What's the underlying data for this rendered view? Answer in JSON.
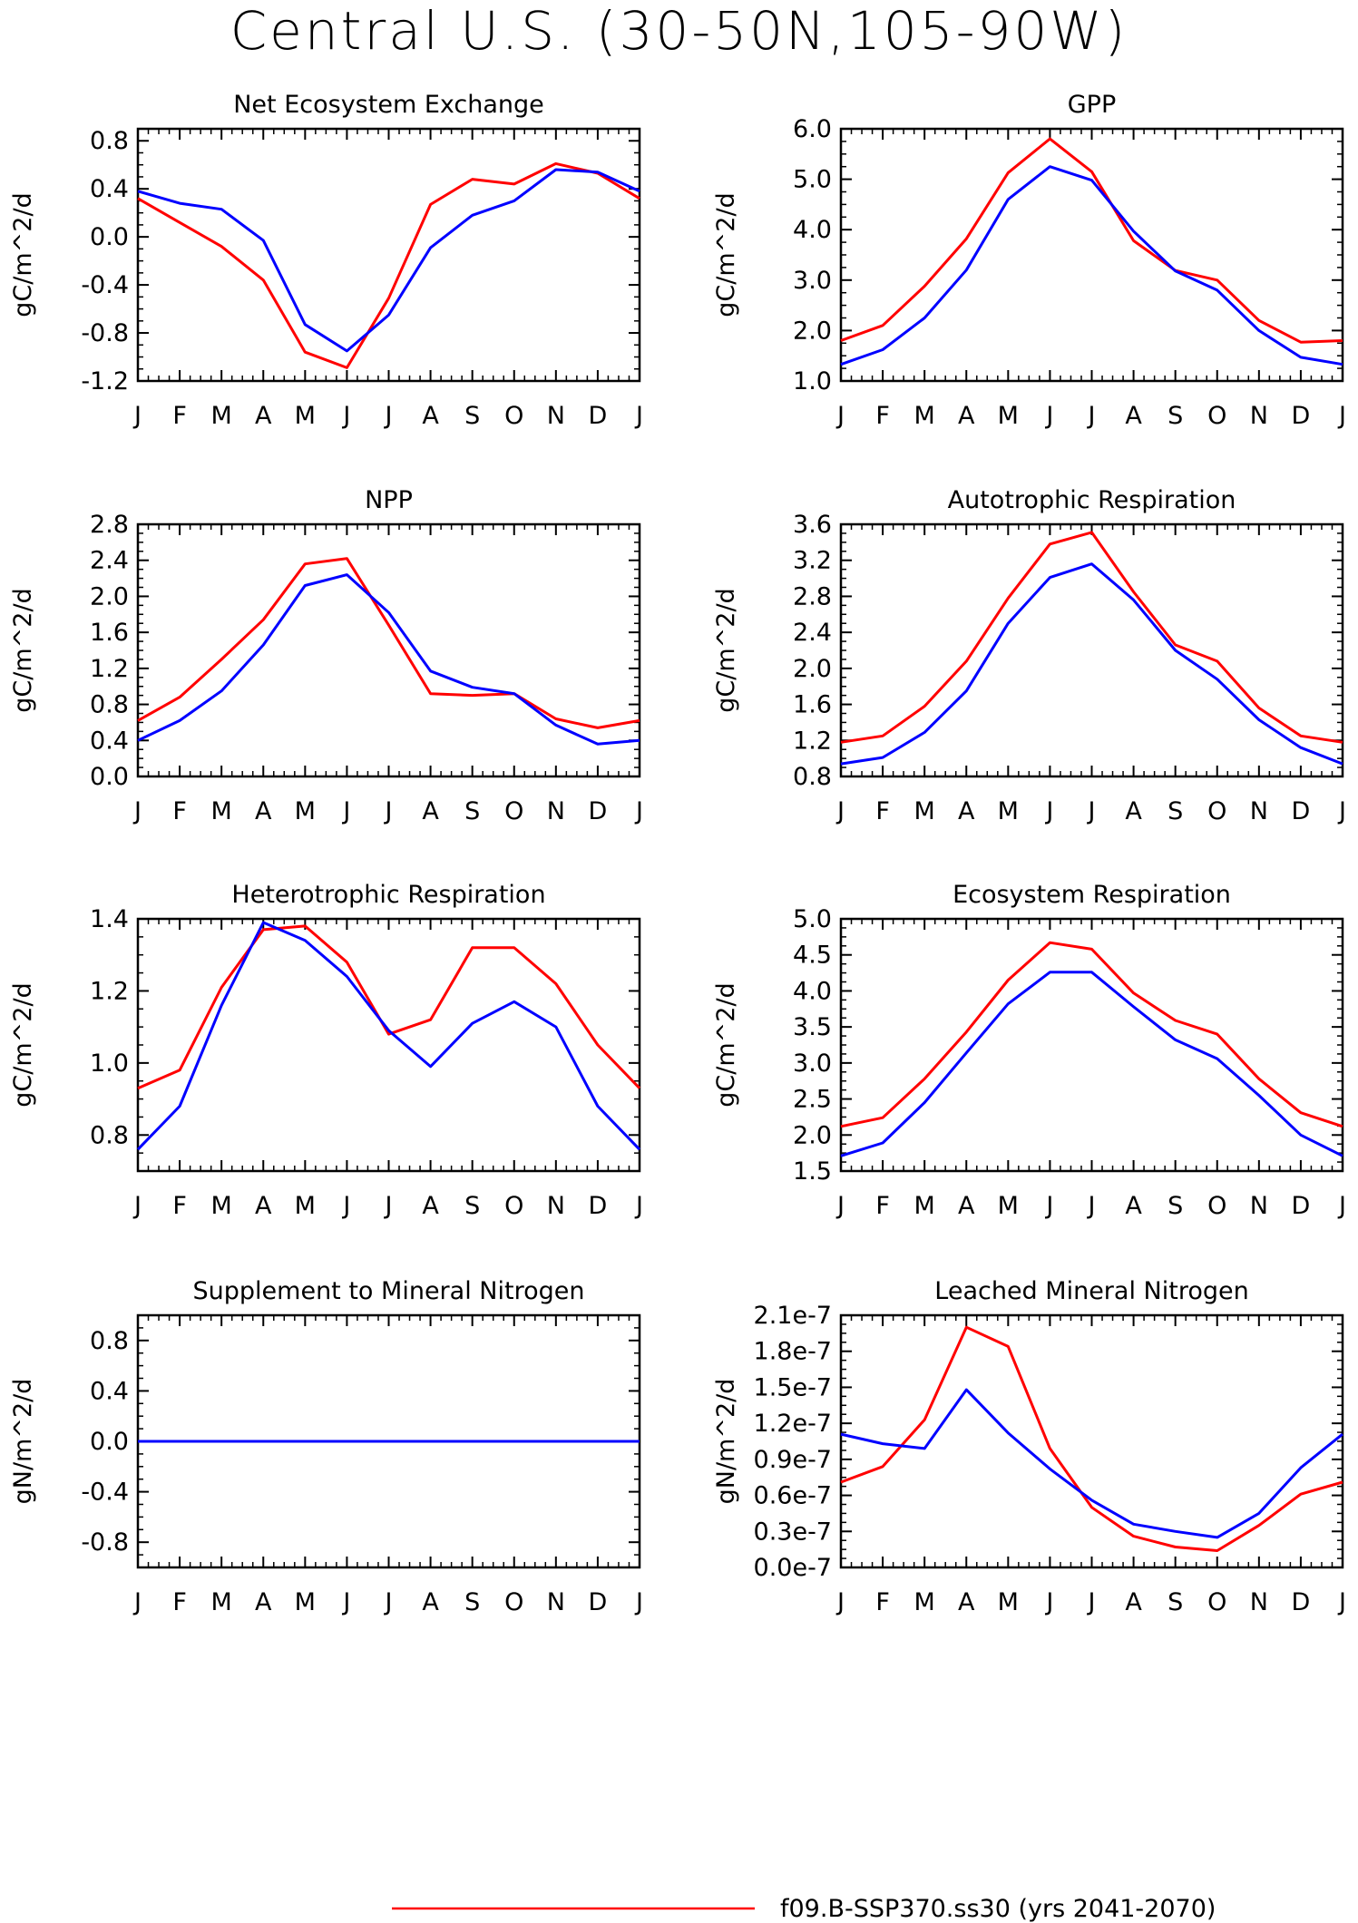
{
  "page_title": "Central U.S. (30-50N,105-90W)",
  "months": [
    "J",
    "F",
    "M",
    "A",
    "M",
    "J",
    "J",
    "A",
    "S",
    "O",
    "N",
    "D",
    "J"
  ],
  "colors": {
    "series1": "#ff0000",
    "series2": "#0000ff",
    "axis": "#000000"
  },
  "chart_data": [
    {
      "type": "line",
      "title": "Net Ecosystem Exchange",
      "ylabel": "gC/m^2/d",
      "ylim": [
        -1.2,
        0.9
      ],
      "yticks": [
        -1.2,
        -0.8,
        -0.4,
        0.0,
        0.4,
        0.8
      ],
      "ytick_labels": [
        "-1.2",
        "-0.8",
        "-0.4",
        "0.0",
        "0.4",
        "0.8"
      ],
      "series": [
        {
          "color": "#ff0000",
          "values": [
            0.32,
            0.12,
            -0.08,
            -0.36,
            -0.96,
            -1.09,
            -0.51,
            0.27,
            0.48,
            0.44,
            0.61,
            0.53,
            0.32
          ]
        },
        {
          "color": "#0000ff",
          "values": [
            0.38,
            0.28,
            0.23,
            -0.03,
            -0.73,
            -0.95,
            -0.65,
            -0.09,
            0.18,
            0.3,
            0.56,
            0.54,
            0.38
          ]
        }
      ]
    },
    {
      "type": "line",
      "title": "GPP",
      "ylabel": "gC/m^2/d",
      "ylim": [
        1.0,
        6.0
      ],
      "yticks": [
        1.0,
        2.0,
        3.0,
        4.0,
        5.0,
        6.0
      ],
      "ytick_labels": [
        "1.0",
        "2.0",
        "3.0",
        "4.0",
        "5.0",
        "6.0"
      ],
      "series": [
        {
          "color": "#ff0000",
          "values": [
            1.8,
            2.1,
            2.88,
            3.82,
            5.13,
            5.8,
            5.15,
            3.78,
            3.19,
            3.0,
            2.2,
            1.77,
            1.8
          ]
        },
        {
          "color": "#0000ff",
          "values": [
            1.33,
            1.62,
            2.25,
            3.2,
            4.6,
            5.25,
            4.98,
            3.97,
            3.18,
            2.8,
            2.0,
            1.47,
            1.33
          ]
        }
      ]
    },
    {
      "type": "line",
      "title": "NPP",
      "ylabel": "gC/m^2/d",
      "ylim": [
        0.0,
        2.8
      ],
      "yticks": [
        0.0,
        0.4,
        0.8,
        1.2,
        1.6,
        2.0,
        2.4,
        2.8
      ],
      "ytick_labels": [
        "0.0",
        "0.4",
        "0.8",
        "1.2",
        "1.6",
        "2.0",
        "2.4",
        "2.8"
      ],
      "series": [
        {
          "color": "#ff0000",
          "values": [
            0.62,
            0.88,
            1.3,
            1.74,
            2.36,
            2.42,
            1.68,
            0.92,
            0.9,
            0.92,
            0.64,
            0.54,
            0.62
          ]
        },
        {
          "color": "#0000ff",
          "values": [
            0.4,
            0.62,
            0.95,
            1.46,
            2.12,
            2.24,
            1.82,
            1.17,
            0.99,
            0.92,
            0.57,
            0.36,
            0.4
          ]
        }
      ]
    },
    {
      "type": "line",
      "title": "Autotrophic Respiration",
      "ylabel": "gC/m^2/d",
      "ylim": [
        0.8,
        3.6
      ],
      "yticks": [
        0.8,
        1.2,
        1.6,
        2.0,
        2.4,
        2.8,
        3.2,
        3.6
      ],
      "ytick_labels": [
        "0.8",
        "1.2",
        "1.6",
        "2.0",
        "2.4",
        "2.8",
        "3.2",
        "3.6"
      ],
      "series": [
        {
          "color": "#ff0000",
          "values": [
            1.18,
            1.25,
            1.58,
            2.08,
            2.78,
            3.38,
            3.51,
            2.85,
            2.26,
            2.08,
            1.56,
            1.25,
            1.18
          ]
        },
        {
          "color": "#0000ff",
          "values": [
            0.94,
            1.01,
            1.29,
            1.75,
            2.5,
            3.01,
            3.16,
            2.76,
            2.2,
            1.88,
            1.43,
            1.12,
            0.94
          ]
        }
      ]
    },
    {
      "type": "line",
      "title": "Heterotrophic Respiration",
      "ylabel": "gC/m^2/d",
      "ylim": [
        0.7,
        1.4
      ],
      "yticks": [
        0.8,
        1.0,
        1.2,
        1.4
      ],
      "ytick_labels": [
        "0.8",
        "1.0",
        "1.2",
        "1.4"
      ],
      "series": [
        {
          "color": "#ff0000",
          "values": [
            0.93,
            0.98,
            1.21,
            1.37,
            1.38,
            1.28,
            1.08,
            1.12,
            1.32,
            1.32,
            1.22,
            1.05,
            0.93
          ]
        },
        {
          "color": "#0000ff",
          "values": [
            0.76,
            0.88,
            1.16,
            1.39,
            1.34,
            1.24,
            1.09,
            0.99,
            1.11,
            1.17,
            1.1,
            0.88,
            0.76
          ]
        }
      ]
    },
    {
      "type": "line",
      "title": "Ecosystem Respiration",
      "ylabel": "gC/m^2/d",
      "ylim": [
        1.5,
        5.0
      ],
      "yticks": [
        1.5,
        2.0,
        2.5,
        3.0,
        3.5,
        4.0,
        4.5,
        5.0
      ],
      "ytick_labels": [
        "1.5",
        "2.0",
        "2.5",
        "3.0",
        "3.5",
        "4.0",
        "4.5",
        "5.0"
      ],
      "series": [
        {
          "color": "#ff0000",
          "values": [
            2.12,
            2.24,
            2.78,
            3.43,
            4.15,
            4.67,
            4.58,
            3.97,
            3.59,
            3.4,
            2.78,
            2.31,
            2.12
          ]
        },
        {
          "color": "#0000ff",
          "values": [
            1.71,
            1.89,
            2.45,
            3.14,
            3.82,
            4.26,
            4.26,
            3.78,
            3.32,
            3.06,
            2.55,
            2.0,
            1.71
          ]
        }
      ]
    },
    {
      "type": "line",
      "title": "Supplement to Mineral Nitrogen",
      "ylabel": "gN/m^2/d",
      "ylim": [
        -1.0,
        1.0
      ],
      "yticks": [
        -0.8,
        -0.4,
        0.0,
        0.4,
        0.8
      ],
      "ytick_labels": [
        "-0.8",
        "-0.4",
        "0.0",
        "0.4",
        "0.8"
      ],
      "series": [
        {
          "color": "#ff0000",
          "values": [
            0,
            0,
            0,
            0,
            0,
            0,
            0,
            0,
            0,
            0,
            0,
            0,
            0
          ]
        },
        {
          "color": "#0000ff",
          "values": [
            0,
            0,
            0,
            0,
            0,
            0,
            0,
            0,
            0,
            0,
            0,
            0,
            0
          ]
        }
      ]
    },
    {
      "type": "line",
      "title": "Leached Mineral Nitrogen",
      "ylabel": "gN/m^2/d",
      "ylim": [
        0.0,
        2.1e-07
      ],
      "yticks": [
        0.0,
        3e-08,
        6e-08,
        9e-08,
        1.2e-07,
        1.5e-07,
        1.8e-07,
        2.1e-07
      ],
      "ytick_labels": [
        "0.0e-7",
        "0.3e-7",
        "0.6e-7",
        "0.9e-7",
        "1.2e-7",
        "1.5e-7",
        "1.8e-7",
        "2.1e-7"
      ],
      "series": [
        {
          "color": "#ff0000",
          "values": [
            7.1e-08,
            8.4e-08,
            1.23e-07,
            2e-07,
            1.84e-07,
            9.9e-08,
            5e-08,
            2.6e-08,
            1.7e-08,
            1.4e-08,
            3.5e-08,
            6.1e-08,
            7.1e-08
          ]
        },
        {
          "color": "#0000ff",
          "values": [
            1.11e-07,
            1.03e-07,
            9.9e-08,
            1.48e-07,
            1.12e-07,
            8.2e-08,
            5.6e-08,
            3.6e-08,
            3e-08,
            2.5e-08,
            4.5e-08,
            8.3e-08,
            1.11e-07
          ]
        }
      ]
    }
  ],
  "legend": [
    {
      "label": "f09.B-SSP370.ss30 (yrs 2041-2070)",
      "color": "#ff0000"
    }
  ]
}
